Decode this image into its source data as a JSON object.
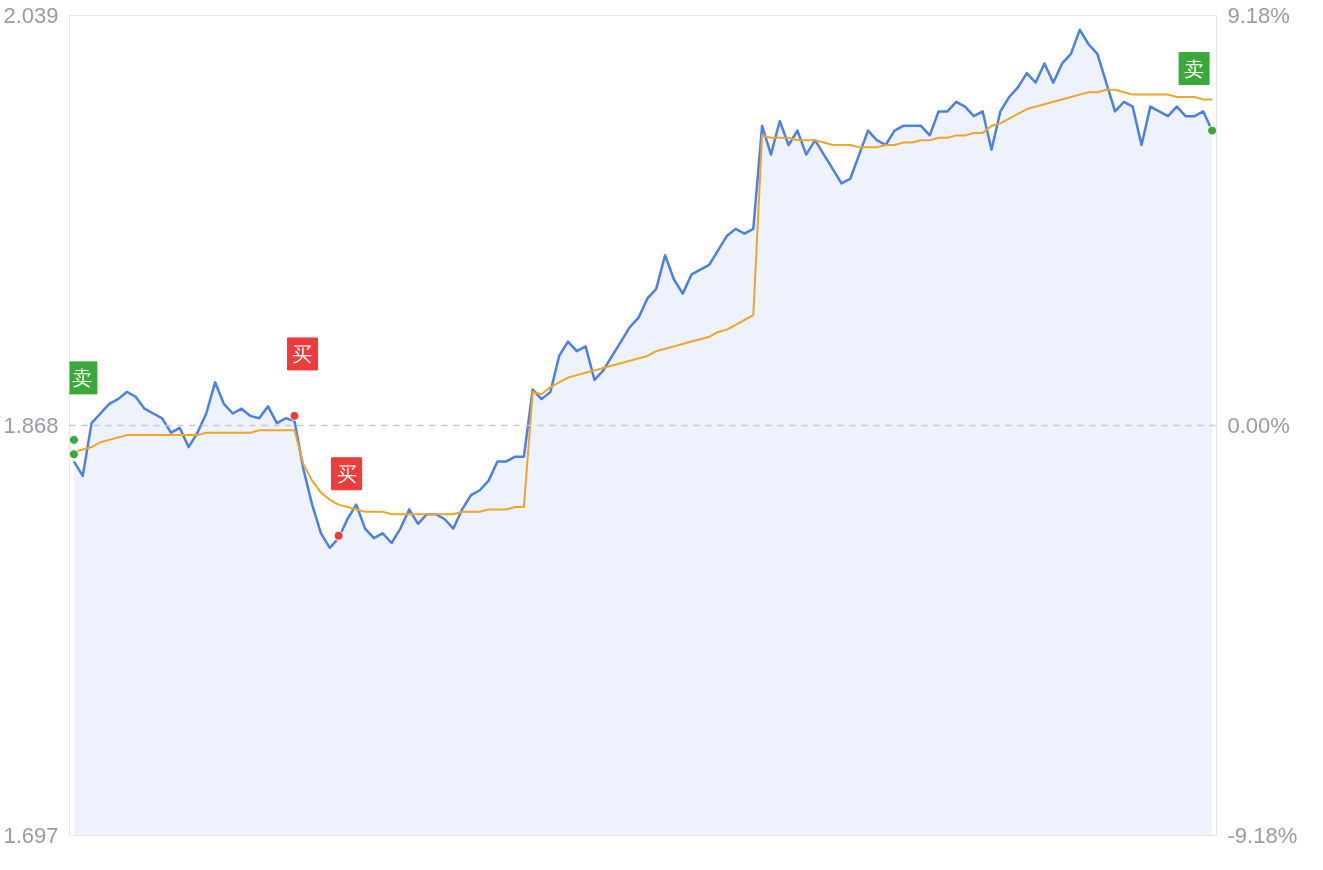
{
  "chart_data": {
    "type": "area",
    "ylim": [
      1.697,
      2.039
    ],
    "yticks": [
      1.697,
      1.868,
      2.039
    ],
    "y2lim": [
      -9.18,
      9.18
    ],
    "y2ticks": [
      {
        "value": -9.18,
        "label": "-9.18%"
      },
      {
        "value": 0,
        "label": "0.00%"
      },
      {
        "value": 9.18,
        "label": "9.18%"
      }
    ],
    "tick_labels": "y",
    "categories": [
      null,
      null,
      null,
      null,
      null,
      null,
      null,
      null,
      null,
      null,
      null,
      null,
      null,
      null,
      null,
      null,
      null,
      null,
      null,
      null,
      null,
      null,
      null,
      null,
      null,
      null,
      null,
      null,
      null,
      null,
      null,
      null,
      null,
      null,
      null,
      null,
      null,
      null,
      null,
      null,
      null,
      null,
      null,
      null,
      null,
      null,
      null,
      null,
      null,
      null,
      null,
      null,
      null,
      null,
      null,
      null,
      null,
      null,
      null,
      null,
      null,
      null,
      null,
      null,
      null,
      null,
      null,
      null,
      null,
      null,
      null,
      null,
      null,
      null,
      null,
      null,
      null,
      null,
      null,
      null,
      null,
      null,
      null,
      null,
      null,
      null,
      null,
      null,
      null,
      null,
      null,
      null,
      null,
      null,
      null,
      null,
      null,
      null,
      null,
      null,
      null,
      null,
      null,
      null,
      null,
      null,
      null,
      null,
      null,
      null,
      null,
      null,
      null,
      null,
      null,
      null,
      null,
      null,
      null,
      null,
      null,
      null,
      null,
      null,
      null,
      null,
      null,
      null,
      null,
      null
    ],
    "series": [
      {
        "color": "#4a80e8",
        "values": [
          1.853,
          1.847,
          1.869,
          1.873,
          1.877,
          1.879,
          1.882,
          1.88,
          1.875,
          1.873,
          1.871,
          1.865,
          1.867,
          1.859,
          1.865,
          1.873,
          1.886,
          1.877,
          1.873,
          1.875,
          1.872,
          1.871,
          1.876,
          1.869,
          1.871,
          1.87,
          1.85,
          1.835,
          1.823,
          1.817,
          1.821,
          1.829,
          1.835,
          1.825,
          1.821,
          1.823,
          1.819,
          1.825,
          1.833,
          1.827,
          1.831,
          1.831,
          1.829,
          1.825,
          1.833,
          1.839,
          1.841,
          1.845,
          1.853,
          1.853,
          1.855,
          1.855,
          1.883,
          1.879,
          1.882,
          1.897,
          1.903,
          1.899,
          1.901,
          1.887,
          1.891,
          1.897,
          1.903,
          1.909,
          1.913,
          1.921,
          1.925,
          1.939,
          1.929,
          1.923,
          1.931,
          1.933,
          1.935,
          1.941,
          1.947,
          1.95,
          1.948,
          1.95,
          1.993,
          1.981,
          1.995,
          1.985,
          1.991,
          1.981,
          1.987,
          1.981,
          1.975,
          1.969,
          1.971,
          1.981,
          1.991,
          1.987,
          1.985,
          1.991,
          1.993,
          1.993,
          1.993,
          1.989,
          1.999,
          1.999,
          2.003,
          2.001,
          1.997,
          1.999,
          1.983,
          1.999,
          2.005,
          2.009,
          2.015,
          2.011,
          2.019,
          2.011,
          2.019,
          2.023,
          2.033,
          2.027,
          2.023,
          2.011,
          1.999,
          2.003,
          2.001,
          1.985,
          2.001,
          1.999,
          1.997,
          2.001,
          1.997,
          1.997,
          1.999,
          1.991
        ]
      },
      {
        "type": "line",
        "color": "#f0a428",
        "values": [
          1.857,
          1.858,
          1.859,
          1.861,
          1.862,
          1.863,
          1.864,
          1.864,
          1.864,
          1.864,
          1.864,
          1.864,
          1.864,
          1.864,
          1.864,
          1.865,
          1.865,
          1.865,
          1.865,
          1.865,
          1.865,
          1.866,
          1.866,
          1.866,
          1.866,
          1.866,
          1.852,
          1.845,
          1.84,
          1.837,
          1.835,
          1.834,
          1.833,
          1.832,
          1.832,
          1.832,
          1.831,
          1.831,
          1.831,
          1.831,
          1.831,
          1.831,
          1.831,
          1.831,
          1.832,
          1.832,
          1.832,
          1.833,
          1.833,
          1.833,
          1.834,
          1.834,
          1.882,
          1.881,
          1.884,
          1.886,
          1.888,
          1.889,
          1.89,
          1.891,
          1.892,
          1.893,
          1.894,
          1.895,
          1.896,
          1.897,
          1.899,
          1.9,
          1.901,
          1.902,
          1.903,
          1.904,
          1.905,
          1.907,
          1.908,
          1.91,
          1.912,
          1.914,
          1.989,
          1.988,
          1.988,
          1.988,
          1.987,
          1.987,
          1.987,
          1.986,
          1.985,
          1.985,
          1.985,
          1.984,
          1.984,
          1.984,
          1.985,
          1.985,
          1.986,
          1.986,
          1.987,
          1.987,
          1.988,
          1.988,
          1.989,
          1.989,
          1.99,
          1.99,
          1.993,
          1.994,
          1.996,
          1.998,
          2.0,
          2.001,
          2.002,
          2.003,
          2.004,
          2.005,
          2.006,
          2.007,
          2.007,
          2.008,
          2.008,
          2.007,
          2.006,
          2.006,
          2.006,
          2.006,
          2.006,
          2.005,
          2.005,
          2.005,
          2.004,
          2.004
        ]
      },
      {
        "type": "scatter",
        "color": "#3aa83a",
        "values": [
          1.862,
          null,
          null,
          null,
          null,
          null,
          null,
          null,
          null,
          null,
          null,
          null,
          null,
          null,
          null,
          null,
          null,
          null,
          null,
          null,
          null,
          null,
          null,
          null,
          null,
          null,
          null,
          null,
          null,
          null,
          null,
          null,
          null,
          null,
          null,
          null,
          null,
          null,
          null,
          null,
          null,
          null,
          null,
          null,
          null,
          null,
          null,
          null,
          null,
          null,
          null,
          null,
          null,
          null,
          null,
          null,
          null,
          null,
          null,
          null,
          null,
          null,
          null,
          null,
          null,
          null,
          null,
          null,
          null,
          null,
          null,
          null,
          null,
          null,
          null,
          null,
          null,
          null,
          null,
          null,
          null,
          null,
          null,
          null,
          null,
          null,
          null,
          null,
          null,
          null,
          null,
          null,
          null,
          null,
          null,
          null,
          null,
          null,
          null,
          null,
          null,
          null,
          null,
          null,
          null,
          null,
          null,
          null,
          null,
          null,
          null,
          null,
          null,
          null,
          null,
          null,
          null,
          null,
          null,
          null,
          null,
          null,
          null,
          null,
          null,
          null,
          null,
          null,
          null,
          1.991
        ]
      },
      {
        "type": "scatter",
        "color": "#3aa83a",
        "values": [
          1.856,
          null,
          null,
          null,
          null,
          null,
          null,
          null,
          null,
          null,
          null,
          null,
          null,
          null,
          null,
          null,
          null,
          null,
          null,
          null,
          null,
          null,
          null,
          null,
          null,
          null,
          null,
          null,
          null,
          null,
          null,
          null,
          null,
          null,
          null,
          null,
          null,
          null,
          null,
          null,
          null,
          null,
          null,
          null,
          null,
          null,
          null,
          null,
          null,
          null,
          null,
          null,
          null,
          null,
          null,
          null,
          null,
          null,
          null,
          null,
          null,
          null,
          null,
          null,
          null,
          null,
          null,
          null,
          null,
          null,
          null,
          null,
          null,
          null,
          null,
          null,
          null,
          null,
          null,
          null,
          null,
          null,
          null,
          null,
          null,
          null,
          null,
          null,
          null,
          null,
          null,
          null,
          null,
          null,
          null,
          null,
          null,
          null,
          null,
          null,
          null,
          null,
          null,
          null,
          null,
          null,
          null,
          null,
          null,
          null,
          null,
          null,
          null,
          null,
          null,
          null,
          null,
          null,
          null,
          null,
          null,
          null,
          null,
          null,
          null,
          null,
          null,
          null,
          null,
          null
        ]
      },
      {
        "type": "scatter",
        "color": "#ee3b3b",
        "values": [
          null,
          null,
          null,
          null,
          null,
          null,
          null,
          null,
          null,
          null,
          null,
          null,
          null,
          null,
          null,
          null,
          null,
          null,
          null,
          null,
          null,
          null,
          null,
          null,
          null,
          1.872,
          null,
          null,
          null,
          null,
          1.822,
          null,
          null,
          null,
          null,
          null,
          null,
          null,
          null,
          null,
          null,
          null,
          null,
          null,
          null,
          null,
          null,
          null,
          null,
          null,
          null,
          null,
          null,
          null,
          null,
          null,
          null,
          null,
          null,
          null,
          null,
          null,
          null,
          null,
          null,
          null,
          null,
          null,
          null,
          null,
          null,
          null,
          null,
          null,
          null,
          null,
          null,
          null,
          null,
          null,
          null,
          null,
          null,
          null,
          null,
          null,
          null,
          null,
          null,
          null,
          null,
          null,
          null,
          null,
          null,
          null,
          null,
          null,
          null,
          null,
          null,
          null,
          null,
          null,
          null,
          null,
          null,
          null,
          null,
          null,
          null,
          null,
          null,
          null,
          null,
          null,
          null,
          null,
          null,
          null,
          null,
          null,
          null,
          null,
          null,
          null,
          null,
          null,
          null,
          null
        ]
      }
    ],
    "ref_lines": [
      {
        "axis": "y",
        "value": 1.868,
        "color": "#c8c8d0",
        "line_style": "dashed"
      }
    ],
    "annotations": [
      "卖",
      "买",
      "买",
      "卖"
    ]
  }
}
